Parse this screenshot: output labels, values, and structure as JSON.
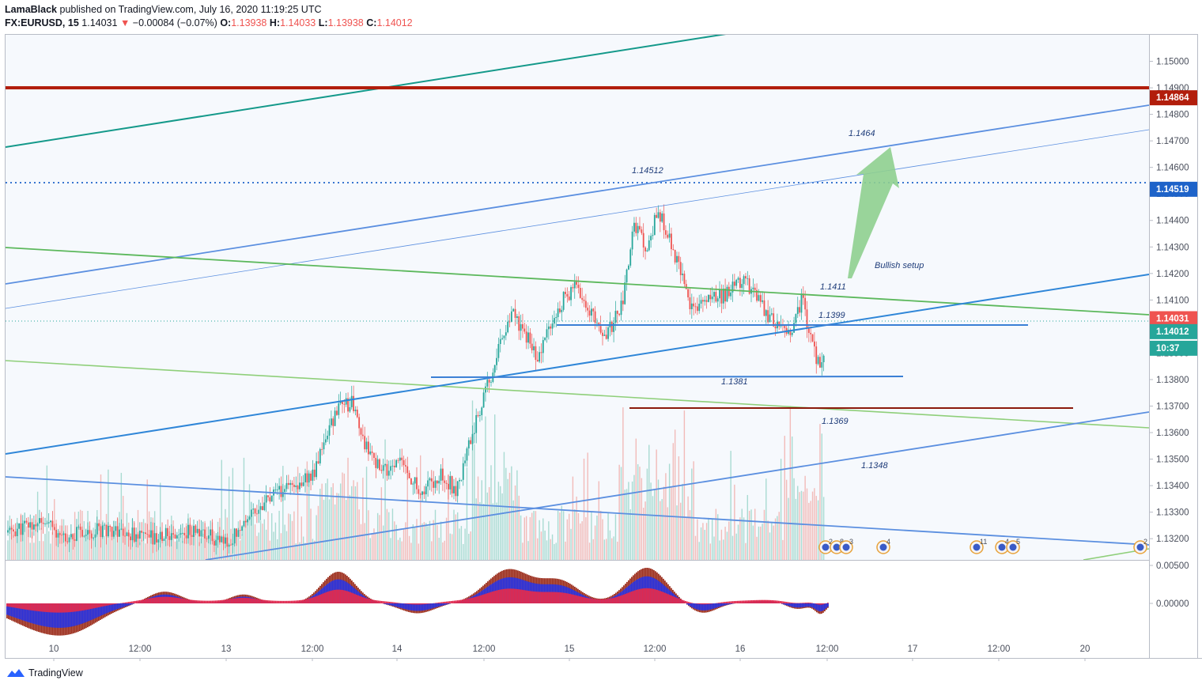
{
  "header": {
    "author": "LamaBlack",
    "published": "published on TradingView.com, July 16, 2020 11:19:25 UTC",
    "symbol": "FX:EURUSD, 15",
    "last": "1.14031",
    "change": "−0.00084 (−0.07%)",
    "o_label": "O:",
    "o": "1.13938",
    "h_label": "H:",
    "h": "1.14033",
    "l_label": "L:",
    "l": "1.13938",
    "c_label": "C:",
    "c": "1.14012"
  },
  "colors": {
    "up": "#26a69a",
    "down": "#ef5350",
    "teal_line": "#14998a",
    "dark_red": "#b21e0c",
    "blue_line": "#4a8fe0",
    "green_line": "#5cb85c",
    "arrow": "#8fcf8f",
    "annotation": "#1f3d7a"
  },
  "price_axis": {
    "ticks": [
      "1.15000",
      "1.14900",
      "1.14800",
      "1.14700",
      "1.14600",
      "1.14500",
      "1.14400",
      "1.14300",
      "1.14200",
      "1.14100",
      "1.14000",
      "1.13900",
      "1.13800",
      "1.13700",
      "1.13600",
      "1.13500",
      "1.13400",
      "1.13300",
      "1.13200"
    ],
    "badges": [
      {
        "text": "1.14864",
        "color": "#b21e0c"
      },
      {
        "text": "1.14519",
        "color": "#1e63c9"
      },
      {
        "text": "1.14031",
        "color": "#ef5350"
      },
      {
        "text": "1.14012",
        "color": "#26a69a"
      },
      {
        "text": "10:37",
        "color": "#26a69a"
      }
    ]
  },
  "osc_axis": {
    "ticks": [
      "0.00500",
      "0.00000"
    ]
  },
  "time_axis": {
    "labels": [
      "10",
      "12:00",
      "13",
      "12:00",
      "14",
      "12:00",
      "15",
      "12:00",
      "16",
      "12:00",
      "17",
      "12:00",
      "20"
    ]
  },
  "annotations": [
    "1.1464",
    "1.14512",
    "Bullish setup",
    "1.1411",
    "1.1399",
    "1.1381",
    "1.1369",
    "1.1348"
  ],
  "events": [
    "2",
    "8",
    "3",
    "4",
    "11",
    "4",
    "5",
    "2"
  ],
  "chart_data": {
    "type": "candlestick",
    "symbol": "FX:EURUSD",
    "interval": "15",
    "ylim": [
      1.1312,
      1.151
    ],
    "key_levels": [
      {
        "price": 1.14864,
        "label": "1.14864",
        "style": "thick",
        "color": "#b21e0c"
      },
      {
        "price": 1.14519,
        "label": "1.14519",
        "style": "dotted",
        "color": "#1e63c9"
      },
      {
        "price": 1.14031,
        "label": "1.14031",
        "style": "dotted",
        "color": "#26a69a"
      },
      {
        "price": 1.1399,
        "label": "1.1399"
      },
      {
        "price": 1.1381,
        "label": "1.1381"
      },
      {
        "price": 1.1369,
        "label": "1.1369"
      }
    ],
    "anchors": [
      {
        "x": 0,
        "o": 1.1325,
        "c": 1.1322
      },
      {
        "x": 40,
        "o": 1.1322,
        "c": 1.1326
      },
      {
        "x": 80,
        "o": 1.1326,
        "c": 1.1321
      },
      {
        "x": 130,
        "o": 1.1321,
        "c": 1.1324
      },
      {
        "x": 180,
        "o": 1.1324,
        "c": 1.132
      },
      {
        "x": 240,
        "o": 1.132,
        "c": 1.1323
      },
      {
        "x": 280,
        "o": 1.1323,
        "c": 1.1318
      },
      {
        "x": 310,
        "o": 1.1318,
        "c": 1.133
      },
      {
        "x": 350,
        "o": 1.133,
        "c": 1.1338
      },
      {
        "x": 390,
        "o": 1.1338,
        "c": 1.1345
      },
      {
        "x": 405,
        "o": 1.1345,
        "c": 1.1358
      },
      {
        "x": 420,
        "o": 1.1358,
        "c": 1.1368
      },
      {
        "x": 438,
        "o": 1.1368,
        "c": 1.1372
      },
      {
        "x": 455,
        "o": 1.1372,
        "c": 1.1355
      },
      {
        "x": 475,
        "o": 1.1355,
        "c": 1.1345
      },
      {
        "x": 500,
        "o": 1.1345,
        "c": 1.1349
      },
      {
        "x": 525,
        "o": 1.1349,
        "c": 1.1337
      },
      {
        "x": 550,
        "o": 1.1337,
        "c": 1.1345
      },
      {
        "x": 570,
        "o": 1.1345,
        "c": 1.1338
      },
      {
        "x": 590,
        "o": 1.1338,
        "c": 1.136
      },
      {
        "x": 610,
        "o": 1.136,
        "c": 1.1378
      },
      {
        "x": 625,
        "o": 1.1378,
        "c": 1.1392
      },
      {
        "x": 640,
        "o": 1.1392,
        "c": 1.1405
      },
      {
        "x": 655,
        "o": 1.1405,
        "c": 1.1398
      },
      {
        "x": 675,
        "o": 1.1398,
        "c": 1.1388
      },
      {
        "x": 690,
        "o": 1.1388,
        "c": 1.1403
      },
      {
        "x": 705,
        "o": 1.1403,
        "c": 1.141
      },
      {
        "x": 722,
        "o": 1.141,
        "c": 1.1415
      },
      {
        "x": 740,
        "o": 1.1415,
        "c": 1.1405
      },
      {
        "x": 755,
        "o": 1.1405,
        "c": 1.1395
      },
      {
        "x": 770,
        "o": 1.1395,
        "c": 1.1402
      },
      {
        "x": 782,
        "o": 1.1402,
        "c": 1.1412
      },
      {
        "x": 795,
        "o": 1.1412,
        "c": 1.1438
      },
      {
        "x": 810,
        "o": 1.1438,
        "c": 1.143
      },
      {
        "x": 825,
        "o": 1.143,
        "c": 1.1443
      },
      {
        "x": 842,
        "o": 1.1443,
        "c": 1.1432
      },
      {
        "x": 855,
        "o": 1.1432,
        "c": 1.1418
      },
      {
        "x": 870,
        "o": 1.1418,
        "c": 1.1405
      },
      {
        "x": 890,
        "o": 1.1405,
        "c": 1.141
      },
      {
        "x": 910,
        "o": 1.141,
        "c": 1.1412
      },
      {
        "x": 935,
        "o": 1.1412,
        "c": 1.1418
      },
      {
        "x": 955,
        "o": 1.1418,
        "c": 1.1408
      },
      {
        "x": 975,
        "o": 1.1408,
        "c": 1.14
      },
      {
        "x": 995,
        "o": 1.14,
        "c": 1.1398
      },
      {
        "x": 1008,
        "o": 1.1398,
        "c": 1.1411
      },
      {
        "x": 1020,
        "o": 1.1411,
        "c": 1.1392
      },
      {
        "x": 1030,
        "o": 1.1392,
        "c": 1.1385
      },
      {
        "x": 1042,
        "o": 1.1385,
        "c": 1.1401
      }
    ]
  }
}
